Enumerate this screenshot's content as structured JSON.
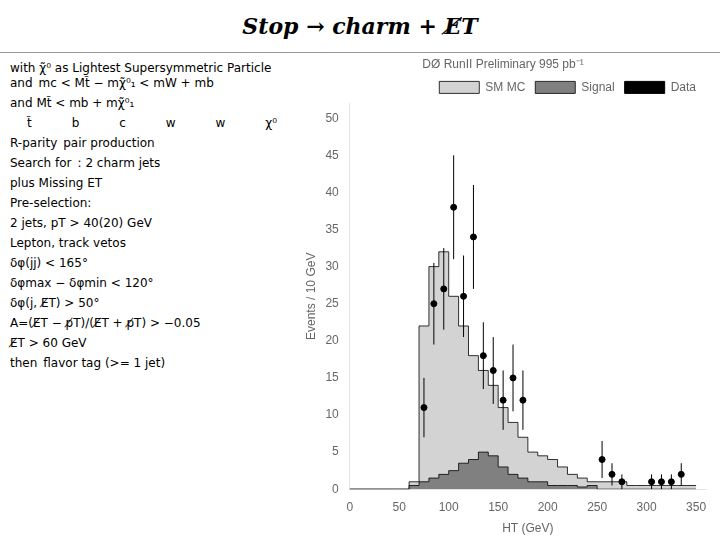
{
  "chart_data": {
    "type": "histogram",
    "title": "Stop → charm + E̸T",
    "subtitle": "DØ RunII Preliminary 995 pb⁻¹",
    "x_label": "HT (GeV)",
    "y_label": "Events / 10 GeV",
    "annotations": [
      [
        "with χ̃⁰ as Lightest Supersymmetric Particle and",
        "mc < Mt̃ − mχ̃⁰₁ < mW + mb"
      ],
      [
        "and Mt̃ < mb + mχ̃⁰₁"
      ],
      [
        "t̃",
        "b",
        "c",
        "w",
        "w",
        "χ⁰"
      ],
      [
        "R-parity",
        "pair production"
      ],
      [
        "Search for",
        ": 2 charm jets"
      ],
      [
        "plus Missing ET"
      ],
      [
        "Pre-selection:"
      ],
      [
        "2 jets, pT > 40(20) GeV"
      ],
      [
        "Lepton, track vetos"
      ],
      [
        "δφ(jj) < 165°"
      ],
      [
        "δφmax − δφmin < 120°"
      ],
      [
        "δφ(j, E̸T) > 50°"
      ],
      [
        "A=(E̸T − p̸T)/(E̸T + p̸T) > −0.05"
      ],
      [
        "E̸T > 60 GeV"
      ],
      [
        "then",
        "flavor tag (>= 1 jet)"
      ]
    ],
    "bins": [
      0,
      50,
      60,
      70,
      80,
      90,
      100,
      110,
      120,
      130,
      140,
      150,
      160,
      170,
      180,
      190,
      200,
      210,
      220,
      230,
      240,
      250,
      260,
      270,
      280,
      290,
      300,
      310,
      320,
      330,
      340,
      350
    ],
    "series": [
      {
        "name": "SM MC",
        "type": "histogram",
        "color": "#d3d3d3",
        "values": [
          0,
          0,
          0,
          1,
          22,
          30,
          32,
          26,
          22,
          18,
          16,
          14,
          11,
          9,
          7,
          5,
          4.5,
          4,
          3,
          2,
          1.5,
          1,
          1,
          1,
          1,
          0.5,
          0.5,
          0.5,
          0.5,
          0.5,
          0.5
        ]
      },
      {
        "name": "Signal",
        "type": "histogram",
        "color": "#808080",
        "values": [
          0,
          0,
          0,
          0.5,
          1,
          1.5,
          2,
          2.5,
          3.5,
          4,
          5,
          4.5,
          3,
          2,
          1.5,
          1,
          1,
          0.5,
          0.5,
          0.5,
          0.3,
          0.5,
          0,
          0,
          0,
          0,
          0,
          0,
          0,
          0,
          0
        ]
      },
      {
        "name": "Data",
        "type": "scatter",
        "color": "#000000",
        "marker": "circle",
        "x": [
          75,
          85,
          95,
          105,
          115,
          125,
          135,
          145,
          155,
          165,
          175,
          255,
          265,
          275,
          305,
          315,
          325,
          335
        ],
        "values": [
          11,
          25,
          27,
          38,
          26,
          34,
          18,
          16,
          12,
          15,
          12,
          4,
          2,
          1,
          1,
          1,
          1,
          2
        ],
        "errors": [
          4,
          5.5,
          5.5,
          7,
          5.5,
          7,
          4.5,
          4.5,
          4,
          4.5,
          4,
          2.5,
          1.5,
          1,
          1,
          1,
          1,
          1.5
        ]
      }
    ],
    "xlim": [
      0,
      360
    ],
    "ylim": [
      0,
      52
    ],
    "xticks": [
      0,
      50,
      100,
      150,
      200,
      250,
      300,
      350
    ],
    "yticks": [
      0,
      5,
      10,
      15,
      20,
      25,
      30,
      35,
      40,
      45,
      50
    ],
    "grid": false,
    "legend": "upper right"
  }
}
